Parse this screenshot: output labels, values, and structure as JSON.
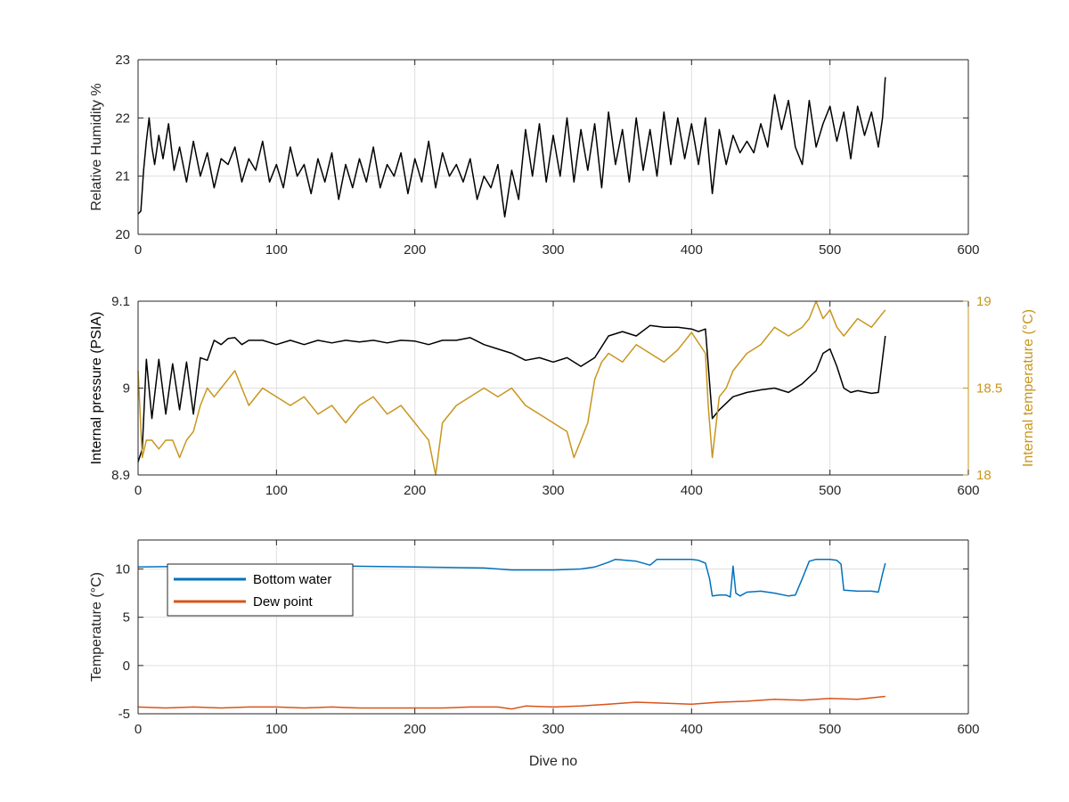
{
  "colors": {
    "black": "#000000",
    "blue": "#0072BD",
    "orange": "#D95319",
    "gold": "#C8961E",
    "grid": "#DFDFDF",
    "axis": "#262626"
  },
  "chart_data": [
    {
      "type": "line",
      "xlabel": "",
      "ylabel": "Relative Humidity %",
      "xlim": [
        0,
        600
      ],
      "ylim": [
        20,
        23
      ],
      "xticks": [
        0,
        100,
        200,
        300,
        400,
        500,
        600
      ],
      "yticks": [
        20,
        21,
        22,
        23
      ],
      "grid": true,
      "series": [
        {
          "color": "black",
          "x": [
            0,
            2,
            4,
            6,
            8,
            10,
            12,
            15,
            18,
            22,
            26,
            30,
            35,
            40,
            45,
            50,
            55,
            60,
            65,
            70,
            75,
            80,
            85,
            90,
            95,
            100,
            105,
            110,
            115,
            120,
            125,
            130,
            135,
            140,
            145,
            150,
            155,
            160,
            165,
            170,
            175,
            180,
            185,
            190,
            195,
            200,
            205,
            210,
            215,
            220,
            225,
            230,
            235,
            240,
            245,
            250,
            255,
            260,
            265,
            270,
            275,
            280,
            285,
            290,
            295,
            300,
            305,
            310,
            315,
            320,
            325,
            330,
            335,
            340,
            345,
            350,
            355,
            360,
            365,
            370,
            375,
            380,
            385,
            390,
            395,
            400,
            405,
            410,
            415,
            420,
            425,
            430,
            435,
            440,
            445,
            450,
            455,
            460,
            465,
            470,
            475,
            480,
            485,
            490,
            495,
            500,
            505,
            510,
            515,
            520,
            525,
            530,
            535,
            538,
            540
          ],
          "y": [
            20.35,
            20.4,
            21.1,
            21.6,
            22.0,
            21.5,
            21.2,
            21.7,
            21.3,
            21.9,
            21.1,
            21.5,
            20.9,
            21.6,
            21.0,
            21.4,
            20.8,
            21.3,
            21.2,
            21.5,
            20.9,
            21.3,
            21.1,
            21.6,
            20.9,
            21.2,
            20.8,
            21.5,
            21.0,
            21.2,
            20.7,
            21.3,
            20.9,
            21.4,
            20.6,
            21.2,
            20.8,
            21.3,
            20.9,
            21.5,
            20.8,
            21.2,
            21.0,
            21.4,
            20.7,
            21.3,
            20.9,
            21.6,
            20.8,
            21.4,
            21.0,
            21.2,
            20.9,
            21.3,
            20.6,
            21.0,
            20.8,
            21.2,
            20.3,
            21.1,
            20.6,
            21.8,
            21.0,
            21.9,
            20.9,
            21.7,
            21.0,
            22.0,
            20.9,
            21.8,
            21.1,
            21.9,
            20.8,
            22.1,
            21.2,
            21.8,
            20.9,
            22.0,
            21.1,
            21.8,
            21.0,
            22.1,
            21.2,
            22.0,
            21.3,
            21.9,
            21.2,
            22.0,
            20.7,
            21.8,
            21.2,
            21.7,
            21.4,
            21.6,
            21.4,
            21.9,
            21.5,
            22.4,
            21.8,
            22.3,
            21.5,
            21.2,
            22.3,
            21.5,
            21.9,
            22.2,
            21.6,
            22.1,
            21.3,
            22.2,
            21.7,
            22.1,
            21.5,
            22.0,
            22.7
          ]
        }
      ]
    },
    {
      "type": "line",
      "xlabel": "",
      "ylabel": "Internal pressure (PSIA)",
      "y2label": "Internal temperature (°C)",
      "xlim": [
        0,
        600
      ],
      "ylim": [
        8.9,
        9.1
      ],
      "y2lim": [
        18,
        19
      ],
      "xticks": [
        0,
        100,
        200,
        300,
        400,
        500,
        600
      ],
      "yticks": [
        8.9,
        9,
        9.1
      ],
      "y2ticks": [
        18,
        18.5,
        19
      ],
      "grid": true,
      "series": [
        {
          "axis": "left",
          "color": "black",
          "x": [
            0,
            3,
            6,
            10,
            15,
            20,
            25,
            30,
            35,
            40,
            45,
            50,
            55,
            60,
            65,
            70,
            75,
            80,
            90,
            100,
            110,
            120,
            130,
            140,
            150,
            160,
            170,
            180,
            190,
            200,
            210,
            220,
            230,
            240,
            250,
            260,
            270,
            280,
            290,
            300,
            310,
            320,
            330,
            340,
            350,
            360,
            370,
            380,
            390,
            400,
            405,
            410,
            415,
            420,
            430,
            440,
            450,
            460,
            470,
            480,
            490,
            495,
            500,
            505,
            510,
            515,
            520,
            530,
            535,
            540
          ],
          "y": [
            8.915,
            8.93,
            9.033,
            8.965,
            9.033,
            8.97,
            9.028,
            8.975,
            9.03,
            8.97,
            9.035,
            9.032,
            9.055,
            9.05,
            9.057,
            9.058,
            9.05,
            9.055,
            9.055,
            9.05,
            9.055,
            9.05,
            9.055,
            9.052,
            9.055,
            9.053,
            9.055,
            9.052,
            9.055,
            9.054,
            9.05,
            9.055,
            9.055,
            9.058,
            9.05,
            9.045,
            9.04,
            9.032,
            9.035,
            9.03,
            9.035,
            9.025,
            9.035,
            9.06,
            9.065,
            9.06,
            9.072,
            9.07,
            9.07,
            9.068,
            9.065,
            9.068,
            8.965,
            8.975,
            8.99,
            8.995,
            8.998,
            9.0,
            8.995,
            9.005,
            9.02,
            9.04,
            9.045,
            9.025,
            9.0,
            8.995,
            8.997,
            8.994,
            8.995,
            9.06
          ]
        },
        {
          "axis": "right",
          "color": "gold",
          "x": [
            0,
            3,
            6,
            10,
            15,
            20,
            25,
            30,
            35,
            40,
            45,
            50,
            55,
            60,
            65,
            70,
            80,
            90,
            100,
            110,
            120,
            130,
            140,
            150,
            160,
            170,
            180,
            190,
            200,
            205,
            210,
            215,
            220,
            230,
            240,
            250,
            260,
            270,
            280,
            290,
            300,
            310,
            315,
            320,
            325,
            330,
            335,
            340,
            350,
            360,
            370,
            380,
            390,
            400,
            410,
            412,
            415,
            420,
            425,
            430,
            440,
            450,
            460,
            470,
            480,
            485,
            490,
            495,
            500,
            505,
            510,
            520,
            530,
            535,
            540
          ],
          "y": [
            18.6,
            18.1,
            18.2,
            18.2,
            18.15,
            18.2,
            18.2,
            18.1,
            18.2,
            18.25,
            18.4,
            18.5,
            18.45,
            18.5,
            18.55,
            18.6,
            18.4,
            18.5,
            18.45,
            18.4,
            18.45,
            18.35,
            18.4,
            18.3,
            18.4,
            18.45,
            18.35,
            18.4,
            18.3,
            18.25,
            18.2,
            18.0,
            18.3,
            18.4,
            18.45,
            18.5,
            18.45,
            18.5,
            18.4,
            18.35,
            18.3,
            18.25,
            18.1,
            18.2,
            18.3,
            18.55,
            18.65,
            18.7,
            18.65,
            18.75,
            18.7,
            18.65,
            18.72,
            18.82,
            18.7,
            18.4,
            18.1,
            18.45,
            18.5,
            18.6,
            18.7,
            18.75,
            18.85,
            18.8,
            18.85,
            18.9,
            19.0,
            18.9,
            18.95,
            18.85,
            18.8,
            18.9,
            18.85,
            18.9,
            18.95
          ]
        }
      ]
    },
    {
      "type": "line",
      "xlabel": "Dive no",
      "ylabel": "Temperature (°C)",
      "xlim": [
        0,
        600
      ],
      "ylim": [
        -5,
        13
      ],
      "xticks": [
        0,
        100,
        200,
        300,
        400,
        500,
        600
      ],
      "yticks": [
        -5,
        0,
        5,
        10
      ],
      "grid": true,
      "legend": "top-left",
      "series": [
        {
          "name": "Bottom water",
          "color": "blue",
          "x": [
            0,
            50,
            100,
            150,
            200,
            250,
            270,
            300,
            320,
            330,
            340,
            345,
            360,
            370,
            375,
            390,
            400,
            405,
            410,
            413,
            415,
            420,
            425,
            428,
            430,
            432,
            435,
            440,
            450,
            460,
            470,
            475,
            480,
            485,
            490,
            500,
            505,
            508,
            510,
            520,
            530,
            535,
            538,
            540
          ],
          "y": [
            10.2,
            10.3,
            10.4,
            10.3,
            10.2,
            10.1,
            9.9,
            9.9,
            10.0,
            10.2,
            10.7,
            11.0,
            10.8,
            10.4,
            11.0,
            11.0,
            11.0,
            10.9,
            10.6,
            9.0,
            7.2,
            7.3,
            7.3,
            7.1,
            10.3,
            7.5,
            7.2,
            7.6,
            7.7,
            7.5,
            7.2,
            7.3,
            9.0,
            10.8,
            11.0,
            11.0,
            10.9,
            10.5,
            7.8,
            7.7,
            7.7,
            7.6,
            9.5,
            10.6
          ]
        },
        {
          "name": "Dew point",
          "color": "orange",
          "x": [
            0,
            20,
            40,
            60,
            80,
            100,
            120,
            140,
            160,
            180,
            200,
            220,
            240,
            260,
            270,
            280,
            300,
            320,
            340,
            360,
            380,
            400,
            420,
            440,
            460,
            480,
            500,
            520,
            540
          ],
          "y": [
            -4.3,
            -4.4,
            -4.3,
            -4.4,
            -4.3,
            -4.3,
            -4.4,
            -4.3,
            -4.4,
            -4.4,
            -4.4,
            -4.4,
            -4.3,
            -4.3,
            -4.5,
            -4.2,
            -4.3,
            -4.2,
            -4.0,
            -3.8,
            -3.9,
            -4.0,
            -3.8,
            -3.7,
            -3.5,
            -3.6,
            -3.4,
            -3.5,
            -3.2
          ]
        }
      ]
    }
  ]
}
